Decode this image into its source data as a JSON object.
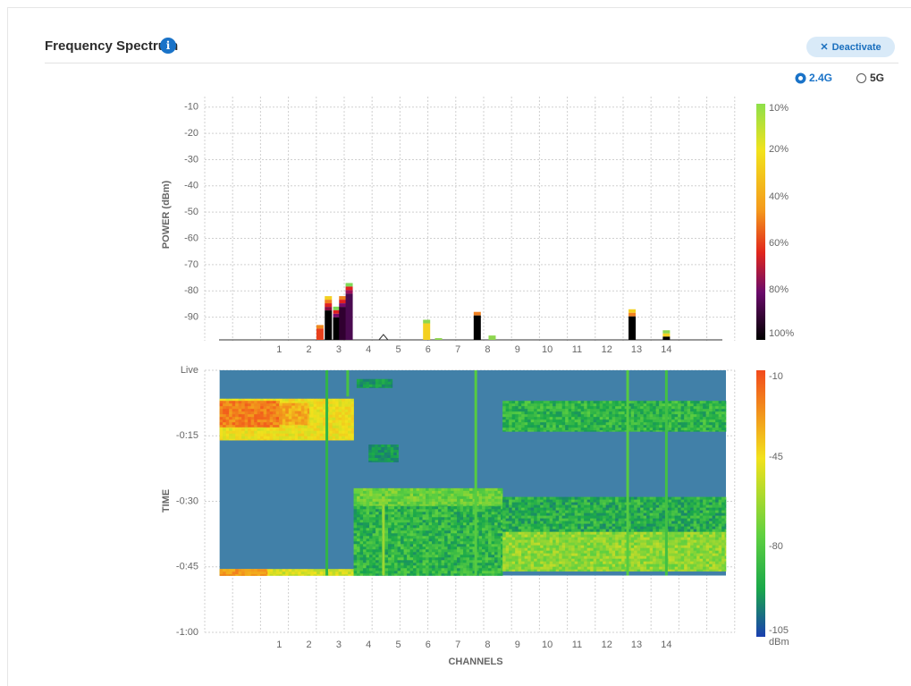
{
  "header": {
    "title": "Frequency Spectrum",
    "info_glyph": "i",
    "deactivate_label": "Deactivate",
    "deactivate_icon": "close-icon"
  },
  "band_selector": {
    "options": [
      {
        "label": "2.4G",
        "selected": true
      },
      {
        "label": "5G",
        "selected": false
      }
    ]
  },
  "colors": {
    "accent": "#1a73c8",
    "heatmap_background": "#4180a8"
  },
  "chart_data": [
    {
      "type": "bar",
      "ylabel": "POWER (dBm)",
      "y_ticks": [
        "-10",
        "-20",
        "-30",
        "-40",
        "-50",
        "-60",
        "-70",
        "-80",
        "-90"
      ],
      "ylim": [
        -99,
        -6
      ],
      "x_tick_labels": [
        "1",
        "2",
        "3",
        "4",
        "5",
        "6",
        "7",
        "8",
        "9",
        "10",
        "11",
        "12",
        "13",
        "14"
      ],
      "x_tick_channels": [
        1,
        2,
        3,
        4,
        5,
        6,
        7,
        8,
        9,
        10,
        11,
        12,
        13,
        14
      ],
      "xlim": [
        -1.5,
        16.3
      ],
      "grid": true,
      "colorbar": {
        "labels": [
          "10%",
          "20%",
          "40%",
          "60%",
          "80%",
          "100%"
        ]
      },
      "bars": [
        {
          "channel": 2.37,
          "peak": -93,
          "colors": [
            "#f08a20",
            "#e8401c"
          ]
        },
        {
          "channel": 2.65,
          "peak": -82,
          "colors": [
            "#f4d020",
            "#f08020",
            "#e02020",
            "#8b0a40",
            "#000000"
          ]
        },
        {
          "channel": 2.93,
          "peak": -86,
          "colors": [
            "#7ed957",
            "#e02020",
            "#7a0a6a",
            "#000000"
          ]
        },
        {
          "channel": 3.13,
          "peak": -82,
          "colors": [
            "#f08020",
            "#e02020",
            "#7a0a6a",
            "#300030"
          ]
        },
        {
          "channel": 3.35,
          "peak": -77,
          "colors": [
            "#7ed957",
            "#e02020",
            "#9b0f5a",
            "#4a0a50"
          ]
        },
        {
          "channel": 5.95,
          "peak": -91,
          "colors": [
            "#8ed64f",
            "#f4d020"
          ]
        },
        {
          "channel": 6.35,
          "peak": -98,
          "colors": [
            "#8ed64f"
          ]
        },
        {
          "channel": 7.65,
          "peak": -88,
          "colors": [
            "#f08020",
            "#000000"
          ]
        },
        {
          "channel": 8.15,
          "peak": -97,
          "colors": [
            "#8ed64f"
          ]
        },
        {
          "channel": 12.85,
          "peak": -87,
          "colors": [
            "#f4d020",
            "#f08020",
            "#000000"
          ]
        },
        {
          "channel": 14.0,
          "peak": -95,
          "colors": [
            "#8ed64f",
            "#f4d020",
            "#000000"
          ]
        }
      ]
    },
    {
      "type": "heatmap",
      "ylabel": "TIME",
      "xlabel": "CHANNELS",
      "y_tick_labels": [
        "Live",
        "-0:15",
        "-0:30",
        "-0:45",
        "-1:00"
      ],
      "y_tick_minutes": [
        0,
        15,
        30,
        45,
        60
      ],
      "x_tick_labels": [
        "1",
        "2",
        "3",
        "4",
        "5",
        "6",
        "7",
        "8",
        "9",
        "10",
        "11",
        "12",
        "13",
        "14"
      ],
      "x_tick_channels": [
        1,
        2,
        3,
        4,
        5,
        6,
        7,
        8,
        9,
        10,
        11,
        12,
        13,
        14
      ],
      "xlim": [
        -1.5,
        16.3
      ],
      "data_xrange": [
        -1,
        16
      ],
      "data_time_range_minutes": [
        0,
        47
      ],
      "colorbar": {
        "labels": [
          "-10",
          "-45",
          "-80",
          "-105"
        ],
        "values_dbm": [
          -10,
          -45,
          -80,
          -105
        ],
        "unit": "dBm"
      },
      "regions": [
        {
          "ch": [
            -1,
            3.5
          ],
          "t": [
            6.5,
            16
          ],
          "dbm": -45,
          "jitter": 6
        },
        {
          "ch": [
            -1,
            1.0
          ],
          "t": [
            7,
            13
          ],
          "dbm": -22,
          "jitter": 8
        },
        {
          "ch": [
            1.0,
            2.0
          ],
          "t": [
            7.5,
            12.5
          ],
          "dbm": -32,
          "jitter": 8
        },
        {
          "ch": [
            -1,
            3.5
          ],
          "t": [
            45.5,
            47
          ],
          "dbm": -50,
          "jitter": 6
        },
        {
          "ch": [
            -1,
            0.6
          ],
          "t": [
            45.5,
            47
          ],
          "dbm": -28,
          "jitter": 6
        },
        {
          "ch": [
            3.5,
            8.5
          ],
          "t": [
            27.5,
            47
          ],
          "dbm": -80,
          "jitter": 10
        },
        {
          "ch": [
            3.5,
            8.5
          ],
          "t": [
            27,
            31
          ],
          "dbm": -68,
          "jitter": 8
        },
        {
          "ch": [
            8.5,
            16
          ],
          "t": [
            7,
            14
          ],
          "dbm": -80,
          "jitter": 9
        },
        {
          "ch": [
            8.5,
            16
          ],
          "t": [
            29,
            37
          ],
          "dbm": -82,
          "jitter": 10
        },
        {
          "ch": [
            8.5,
            16
          ],
          "t": [
            37,
            46
          ],
          "dbm": -62,
          "jitter": 9
        },
        {
          "ch": [
            4.0,
            5.0
          ],
          "t": [
            17,
            21
          ],
          "dbm": -88,
          "jitter": 6
        },
        {
          "ch": [
            3.6,
            4.8
          ],
          "t": [
            2,
            4
          ],
          "dbm": -88,
          "jitter": 6
        }
      ],
      "vertical_lines": [
        {
          "channel": 2.6,
          "t": [
            0,
            47
          ],
          "dbm": -80
        },
        {
          "channel": 3.3,
          "t": [
            0,
            6
          ],
          "dbm": -75
        },
        {
          "channel": 4.5,
          "t": [
            31,
            47
          ],
          "dbm": -60
        },
        {
          "channel": 7.6,
          "t": [
            0,
            47
          ],
          "dbm": -72
        },
        {
          "channel": 12.7,
          "t": [
            0,
            47
          ],
          "dbm": -72
        },
        {
          "channel": 14.0,
          "t": [
            0,
            47
          ],
          "dbm": -76
        }
      ]
    }
  ]
}
